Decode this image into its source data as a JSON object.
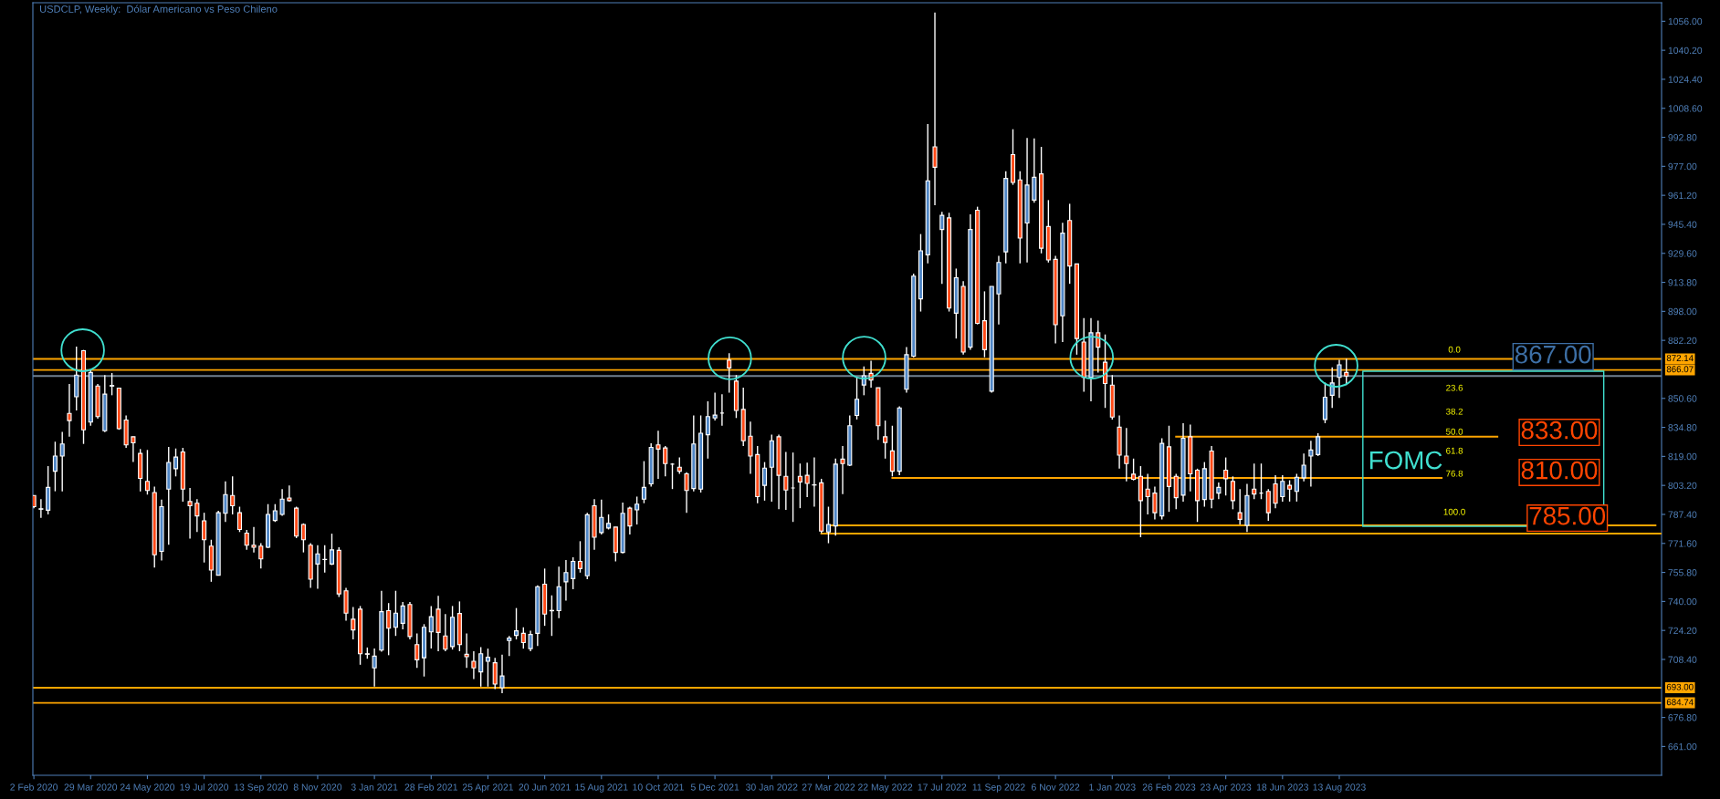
{
  "chart_data": {
    "type": "candlestick",
    "title": "USDCLP, Weekly:  Dólar Americano vs Peso Chileno",
    "x": [
      "2020-02-02",
      "2020-02-09",
      "2020-02-16",
      "2020-02-23",
      "2020-03-01",
      "2020-03-08",
      "2020-03-15",
      "2020-03-22",
      "2020-03-29",
      "2020-04-05",
      "2020-04-12",
      "2020-04-19",
      "2020-04-26",
      "2020-05-03",
      "2020-05-10",
      "2020-05-17",
      "2020-05-24",
      "2020-05-31",
      "2020-06-07",
      "2020-06-14",
      "2020-06-21",
      "2020-06-28",
      "2020-07-05",
      "2020-07-12",
      "2020-07-19",
      "2020-07-26",
      "2020-08-02",
      "2020-08-09",
      "2020-08-16",
      "2020-08-23",
      "2020-08-30",
      "2020-09-06",
      "2020-09-13",
      "2020-09-20",
      "2020-09-27",
      "2020-10-04",
      "2020-10-11",
      "2020-10-18",
      "2020-10-25",
      "2020-11-01",
      "2020-11-08",
      "2020-11-15",
      "2020-11-22",
      "2020-11-29",
      "2020-12-06",
      "2020-12-13",
      "2020-12-20",
      "2020-12-27",
      "2021-01-03",
      "2021-01-10",
      "2021-01-17",
      "2021-01-24",
      "2021-01-31",
      "2021-02-07",
      "2021-02-14",
      "2021-02-21",
      "2021-02-28",
      "2021-03-07",
      "2021-03-14",
      "2021-03-21",
      "2021-03-28",
      "2021-04-04",
      "2021-04-11",
      "2021-04-18",
      "2021-04-25",
      "2021-05-02",
      "2021-05-09",
      "2021-05-16",
      "2021-05-23",
      "2021-05-30",
      "2021-06-06",
      "2021-06-13",
      "2021-06-20",
      "2021-06-27",
      "2021-07-04",
      "2021-07-11",
      "2021-07-18",
      "2021-07-25",
      "2021-08-01",
      "2021-08-08",
      "2021-08-15",
      "2021-08-22",
      "2021-08-29",
      "2021-09-05",
      "2021-09-12",
      "2021-09-19",
      "2021-09-26",
      "2021-10-03",
      "2021-10-10",
      "2021-10-17",
      "2021-10-24",
      "2021-10-31",
      "2021-11-07",
      "2021-11-14",
      "2021-11-21",
      "2021-11-28",
      "2021-12-05",
      "2021-12-12",
      "2021-12-19",
      "2021-12-26",
      "2022-01-02",
      "2022-01-09",
      "2022-01-16",
      "2022-01-23",
      "2022-01-30",
      "2022-02-06",
      "2022-02-13",
      "2022-02-20",
      "2022-02-27",
      "2022-03-06",
      "2022-03-13",
      "2022-03-20",
      "2022-03-27",
      "2022-04-03",
      "2022-04-10",
      "2022-04-17",
      "2022-04-24",
      "2022-05-01",
      "2022-05-08",
      "2022-05-15",
      "2022-05-22",
      "2022-05-29",
      "2022-06-05",
      "2022-06-12",
      "2022-06-19",
      "2022-06-26",
      "2022-07-03",
      "2022-07-10",
      "2022-07-17",
      "2022-07-24",
      "2022-07-31",
      "2022-08-07",
      "2022-08-14",
      "2022-08-21",
      "2022-08-28",
      "2022-09-04",
      "2022-09-11",
      "2022-09-18",
      "2022-09-25",
      "2022-10-02",
      "2022-10-09",
      "2022-10-16",
      "2022-10-23",
      "2022-10-30",
      "2022-11-06",
      "2022-11-13",
      "2022-11-20",
      "2022-11-27",
      "2022-12-04",
      "2022-12-11",
      "2022-12-18",
      "2022-12-25",
      "2023-01-01",
      "2023-01-08",
      "2023-01-15",
      "2023-01-22",
      "2023-01-29",
      "2023-02-05",
      "2023-02-12",
      "2023-02-19",
      "2023-02-26",
      "2023-03-05",
      "2023-03-12",
      "2023-03-19",
      "2023-03-26",
      "2023-04-02",
      "2023-04-09",
      "2023-04-16",
      "2023-04-23",
      "2023-04-30",
      "2023-05-07",
      "2023-05-14",
      "2023-05-21",
      "2023-05-28",
      "2023-06-04",
      "2023-06-11",
      "2023-06-18",
      "2023-06-25",
      "2023-07-02",
      "2023-07-09",
      "2023-07-16",
      "2023-07-23",
      "2023-07-30",
      "2023-08-06",
      "2023-08-13",
      "2023-08-20"
    ],
    "ohlc": [
      [
        797.7,
        797.7,
        790.8,
        791.6
      ],
      [
        790.2,
        795.7,
        785.5,
        790.5
      ],
      [
        789.7,
        813.7,
        787.4,
        802.1
      ],
      [
        810.9,
        827.0,
        800.0,
        819.2
      ],
      [
        819.2,
        832.4,
        799.9,
        825.8
      ],
      [
        842.4,
        858.4,
        829.7,
        838.5
      ],
      [
        851.5,
        878.8,
        844.0,
        863.3
      ],
      [
        876.6,
        877.0,
        825.8,
        833.5
      ],
      [
        837.7,
        866.1,
        835.7,
        864.7
      ],
      [
        857.3,
        858.4,
        839.6,
        840.7
      ],
      [
        833.0,
        863.3,
        832.2,
        852.9
      ],
      [
        857.3,
        864.4,
        852.3,
        857.6
      ],
      [
        856.2,
        856.2,
        833.5,
        834.1
      ],
      [
        838.8,
        841.3,
        823.6,
        825.3
      ],
      [
        829.7,
        829.7,
        815.9,
        826.4
      ],
      [
        820.6,
        823.0,
        799.9,
        807.0
      ],
      [
        805.4,
        822.5,
        798.2,
        800.4
      ],
      [
        799.3,
        802.6,
        758.5,
        765.4
      ],
      [
        767.3,
        795.5,
        762.3,
        791.6
      ],
      [
        801.2,
        824.2,
        770.9,
        815.7
      ],
      [
        812.3,
        823.3,
        808.1,
        818.6
      ],
      [
        821.4,
        823.6,
        794.4,
        801.2
      ],
      [
        794.4,
        801.8,
        774.2,
        792.1
      ],
      [
        793.5,
        795.7,
        777.8,
        786.6
      ],
      [
        783.9,
        788.3,
        761.2,
        773.6
      ],
      [
        770.1,
        773.6,
        750.7,
        757.1
      ],
      [
        754.3,
        789.4,
        754.3,
        788.3
      ],
      [
        788.0,
        805.4,
        783.3,
        798.2
      ],
      [
        797.7,
        808.1,
        787.4,
        792.1
      ],
      [
        788.3,
        791.6,
        777.8,
        779.2
      ],
      [
        777.2,
        778.9,
        768.1,
        770.6
      ],
      [
        770.6,
        780.5,
        766.7,
        769.5
      ],
      [
        770.1,
        771.7,
        757.9,
        763.2
      ],
      [
        769.5,
        793.0,
        769.0,
        787.4
      ],
      [
        784.1,
        793.0,
        783.3,
        789.4
      ],
      [
        787.4,
        801.2,
        786.6,
        795.7
      ],
      [
        796.3,
        803.2,
        794.4,
        794.9
      ],
      [
        790.8,
        791.6,
        774.5,
        775.6
      ],
      [
        781.9,
        782.5,
        766.7,
        773.6
      ],
      [
        770.6,
        771.7,
        747.4,
        752.1
      ],
      [
        760.4,
        770.6,
        746.9,
        765.9
      ],
      [
        762.8,
        770.6,
        755.7,
        762.9
      ],
      [
        760.4,
        776.9,
        759.8,
        768.1
      ],
      [
        767.8,
        769.5,
        742.4,
        744.1
      ],
      [
        745.8,
        747.4,
        729.5,
        733.6
      ],
      [
        730.3,
        736.9,
        719.3,
        724.5
      ],
      [
        735.8,
        737.5,
        705.5,
        711.5
      ],
      [
        711.5,
        714.9,
        708.8,
        711.2
      ],
      [
        703.8,
        714.3,
        693.6,
        710.2
      ],
      [
        713.5,
        745.8,
        712.6,
        734.4
      ],
      [
        735.0,
        739.1,
        710.7,
        725.4
      ],
      [
        725.9,
        745.8,
        721.2,
        733.6
      ],
      [
        728.1,
        739.7,
        724.8,
        737.5
      ],
      [
        738.3,
        739.7,
        719.3,
        720.9
      ],
      [
        716.5,
        722.6,
        703.8,
        708.2
      ],
      [
        709.3,
        727.6,
        699.1,
        725.9
      ],
      [
        723.4,
        737.5,
        714.3,
        731.7
      ],
      [
        735.8,
        743.0,
        712.9,
        723.1
      ],
      [
        721.2,
        733.1,
        712.9,
        714.0
      ],
      [
        715.4,
        737.5,
        713.8,
        731.4
      ],
      [
        733.4,
        740.0,
        712.9,
        716.5
      ],
      [
        711.2,
        722.6,
        703.8,
        709.9
      ],
      [
        707.4,
        712.9,
        697.7,
        703.8
      ],
      [
        701.6,
        715.1,
        693.6,
        711.5
      ],
      [
        707.4,
        714.3,
        693.6,
        709.6
      ],
      [
        706.6,
        709.3,
        692.2,
        695.0
      ],
      [
        693.0,
        711.0,
        690.0,
        699.4
      ],
      [
        718.7,
        721.2,
        710.2,
        720.1
      ],
      [
        721.5,
        736.4,
        719.3,
        724.0
      ],
      [
        722.6,
        725.9,
        714.3,
        717.6
      ],
      [
        714.3,
        724.0,
        712.9,
        722.0
      ],
      [
        722.6,
        748.8,
        715.7,
        748.0
      ],
      [
        749.4,
        757.9,
        726.7,
        733.1
      ],
      [
        734.9,
        743.3,
        721.2,
        735.1
      ],
      [
        735.0,
        759.0,
        730.9,
        748.0
      ],
      [
        750.7,
        762.6,
        740.5,
        755.7
      ],
      [
        752.4,
        764.0,
        746.6,
        761.8
      ],
      [
        761.8,
        772.8,
        755.7,
        757.9
      ],
      [
        754.0,
        788.3,
        752.1,
        787.2
      ],
      [
        792.1,
        795.7,
        768.1,
        775.0
      ],
      [
        777.5,
        795.5,
        776.4,
        785.8
      ],
      [
        780.0,
        787.4,
        779.2,
        782.5
      ],
      [
        780.5,
        780.5,
        761.8,
        766.7
      ],
      [
        766.7,
        793.8,
        766.2,
        788.0
      ],
      [
        790.8,
        791.6,
        776.4,
        781.1
      ],
      [
        789.9,
        797.1,
        781.9,
        793.0
      ],
      [
        795.7,
        816.4,
        793.5,
        802.1
      ],
      [
        804.0,
        826.1,
        802.6,
        823.9
      ],
      [
        825.3,
        833.0,
        806.8,
        823.0
      ],
      [
        823.6,
        824.7,
        808.1,
        815.1
      ],
      [
        814.8,
        815.3,
        801.2,
        814.8
      ],
      [
        813.1,
        818.4,
        809.5,
        810.9
      ],
      [
        809.5,
        810.4,
        788.3,
        800.4
      ],
      [
        801.5,
        841.3,
        799.9,
        825.8
      ],
      [
        801.2,
        841.3,
        799.3,
        831.6
      ],
      [
        830.8,
        849.0,
        817.8,
        840.7
      ],
      [
        839.9,
        853.7,
        838.5,
        841.5
      ],
      [
        842.6,
        852.9,
        835.7,
        842.6
      ],
      [
        871.4,
        875.2,
        853.7,
        867.2
      ],
      [
        860.0,
        863.3,
        839.9,
        844.0
      ],
      [
        844.6,
        856.5,
        824.7,
        827.5
      ],
      [
        830.0,
        838.0,
        809.5,
        819.2
      ],
      [
        820.0,
        824.7,
        793.5,
        797.1
      ],
      [
        803.2,
        815.9,
        794.9,
        812.6
      ],
      [
        813.1,
        830.8,
        794.4,
        827.5
      ],
      [
        829.7,
        830.8,
        790.2,
        808.7
      ],
      [
        808.1,
        821.4,
        789.9,
        800.7
      ],
      [
        801.8,
        821.1,
        783.3,
        801.8
      ],
      [
        808.1,
        815.1,
        790.8,
        805.1
      ],
      [
        808.7,
        815.6,
        796.8,
        804.3
      ],
      [
        803.5,
        818.4,
        791.6,
        803.4
      ],
      [
        804.6,
        806.8,
        777.2,
        778.3
      ],
      [
        777.8,
        791.6,
        771.7,
        781.9
      ],
      [
        781.1,
        817.8,
        775.8,
        814.8
      ],
      [
        817.5,
        824.7,
        798.5,
        815.1
      ],
      [
        814.2,
        841.3,
        813.7,
        835.7
      ],
      [
        841.3,
        862.0,
        839.1,
        850.1
      ],
      [
        857.9,
        868.0,
        852.3,
        862.9
      ],
      [
        864.2,
        871.1,
        856.4,
        860.6
      ],
      [
        856.4,
        856.4,
        828.0,
        835.7
      ],
      [
        829.7,
        838.5,
        817.8,
        826.6
      ],
      [
        822.0,
        835.7,
        808.1,
        810.9
      ],
      [
        810.9,
        846.2,
        808.7,
        845.4
      ],
      [
        855.6,
        878.5,
        853.7,
        874.4
      ],
      [
        873.6,
        918.6,
        873.0,
        917.2
      ],
      [
        904.8,
        940.1,
        897.9,
        931.0
      ],
      [
        928.8,
        1000.0,
        924.1,
        969.1
      ],
      [
        987.6,
        1060.7,
        955.8,
        976.5
      ],
      [
        942.6,
        952.2,
        913.0,
        950.3
      ],
      [
        948.9,
        951.7,
        897.9,
        899.8
      ],
      [
        897.0,
        921.3,
        883.2,
        916.3
      ],
      [
        911.6,
        914.4,
        874.4,
        875.8
      ],
      [
        878.5,
        950.8,
        877.1,
        942.6
      ],
      [
        953.1,
        955.0,
        890.9,
        891.5
      ],
      [
        892.9,
        908.9,
        873.0,
        877.1
      ],
      [
        854.5,
        911.6,
        853.7,
        911.6
      ],
      [
        907.5,
        928.2,
        890.9,
        924.6
      ],
      [
        930.4,
        974.3,
        924.1,
        970.4
      ],
      [
        983.4,
        997.2,
        966.9,
        968.2
      ],
      [
        969.6,
        974.3,
        924.1,
        937.9
      ],
      [
        946.1,
        992.5,
        924.6,
        966.8
      ],
      [
        958.6,
        992.2,
        957.2,
        971.0
      ],
      [
        972.9,
        987.6,
        929.6,
        932.4
      ],
      [
        944.2,
        958.6,
        924.6,
        926.0
      ],
      [
        926.3,
        928.2,
        880.5,
        890.7
      ],
      [
        895.6,
        946.2,
        881.3,
        940.6
      ],
      [
        947.5,
        956.6,
        913.0,
        922.7
      ],
      [
        923.8,
        923.8,
        874.4,
        883.2
      ],
      [
        881.3,
        894.3,
        854.2,
        862.0
      ],
      [
        862.0,
        894.3,
        849.0,
        886.3
      ],
      [
        886.3,
        892.9,
        864.7,
        878.5
      ],
      [
        870.3,
        885.4,
        845.4,
        858.7
      ],
      [
        857.8,
        863.3,
        839.1,
        840.4
      ],
      [
        834.9,
        841.3,
        812.3,
        819.7
      ],
      [
        819.2,
        834.4,
        805.4,
        815.1
      ],
      [
        809.3,
        817.8,
        805.9,
        806.5
      ],
      [
        808.1,
        813.7,
        775.0,
        794.9
      ],
      [
        801.2,
        809.5,
        787.4,
        797.1
      ],
      [
        799.0,
        802.6,
        784.7,
        788.3
      ],
      [
        786.6,
        828.9,
        784.7,
        826.1
      ],
      [
        824.2,
        835.7,
        788.8,
        802.6
      ],
      [
        808.1,
        809.5,
        790.2,
        796.5
      ],
      [
        797.9,
        837.1,
        794.4,
        828.9
      ],
      [
        829.7,
        836.3,
        799.9,
        809.5
      ],
      [
        811.5,
        812.3,
        783.3,
        794.9
      ],
      [
        795.5,
        815.9,
        791.6,
        812.3
      ],
      [
        821.9,
        824.7,
        790.8,
        795.7
      ],
      [
        799.0,
        804.8,
        795.7,
        802.1
      ],
      [
        811.5,
        818.4,
        797.7,
        806.8
      ],
      [
        805.4,
        808.1,
        790.2,
        794.9
      ],
      [
        788.3,
        801.2,
        781.9,
        784.7
      ],
      [
        781.4,
        804.0,
        777.8,
        797.7
      ],
      [
        801.2,
        815.1,
        795.7,
        798.5
      ],
      [
        799.0,
        815.1,
        795.7,
        799.0
      ],
      [
        799.9,
        801.2,
        783.9,
        788.3
      ],
      [
        804.0,
        808.7,
        790.8,
        793.5
      ],
      [
        797.1,
        808.7,
        794.4,
        805.4
      ],
      [
        803.2,
        806.0,
        794.4,
        801.2
      ],
      [
        799.9,
        809.5,
        794.4,
        807.6
      ],
      [
        807.3,
        820.6,
        805.4,
        814.2
      ],
      [
        819.2,
        827.5,
        802.6,
        822.5
      ],
      [
        820.0,
        831.6,
        819.2,
        829.7
      ],
      [
        839.1,
        859.2,
        837.1,
        851.2
      ],
      [
        852.3,
        867.5,
        845.4,
        859.0
      ],
      [
        862.0,
        871.6,
        850.9,
        868.9
      ],
      [
        864.7,
        872.2,
        857.8,
        862.8
      ]
    ],
    "xlim": [
      "2020-02-01",
      "2024-06-26"
    ],
    "xticks": [
      {
        "value": "2020-02-02",
        "label": "2 Feb 2020"
      },
      {
        "value": "2020-03-29",
        "label": "29 Mar 2020"
      },
      {
        "value": "2020-05-24",
        "label": "24 May 2020"
      },
      {
        "value": "2020-07-19",
        "label": "19 Jul 2020"
      },
      {
        "value": "2020-09-13",
        "label": "13 Sep 2020"
      },
      {
        "value": "2020-11-08",
        "label": "8 Nov 2020"
      },
      {
        "value": "2021-01-03",
        "label": "3 Jan 2021"
      },
      {
        "value": "2021-02-28",
        "label": "28 Feb 2021"
      },
      {
        "value": "2021-04-25",
        "label": "25 Apr 2021"
      },
      {
        "value": "2021-06-20",
        "label": "20 Jun 2021"
      },
      {
        "value": "2021-08-15",
        "label": "15 Aug 2021"
      },
      {
        "value": "2021-10-10",
        "label": "10 Oct 2021"
      },
      {
        "value": "2021-12-05",
        "label": "5 Dec 2021"
      },
      {
        "value": "2022-01-30",
        "label": "30 Jan 2022"
      },
      {
        "value": "2022-03-27",
        "label": "27 Mar 2022"
      },
      {
        "value": "2022-05-22",
        "label": "22 May 2022"
      },
      {
        "value": "2022-07-17",
        "label": "17 Jul 2022"
      },
      {
        "value": "2022-09-11",
        "label": "11 Sep 2022"
      },
      {
        "value": "2022-11-06",
        "label": "6 Nov 2022"
      },
      {
        "value": "2023-01-01",
        "label": "1 Jan 2023"
      },
      {
        "value": "2023-02-26",
        "label": "26 Feb 2023"
      },
      {
        "value": "2023-04-23",
        "label": "23 Apr 2023"
      },
      {
        "value": "2023-06-18",
        "label": "18 Jun 2023"
      },
      {
        "value": "2023-08-13",
        "label": "13 Aug 2023"
      }
    ],
    "ylim": [
      645.3,
      1066.1
    ],
    "yticks": [
      {
        "value": 1056,
        "label": "1056.00"
      },
      {
        "value": 1040.2,
        "label": "1040.20"
      },
      {
        "value": 1024.4,
        "label": "1024.40"
      },
      {
        "value": 1008.6,
        "label": "1008.60"
      },
      {
        "value": 992.8,
        "label": "992.80"
      },
      {
        "value": 977,
        "label": "977.00"
      },
      {
        "value": 961.2,
        "label": "961.20"
      },
      {
        "value": 945.4,
        "label": "945.40"
      },
      {
        "value": 929.6,
        "label": "929.60"
      },
      {
        "value": 913.8,
        "label": "913.80"
      },
      {
        "value": 898,
        "label": "898.00"
      },
      {
        "value": 882.2,
        "label": "882.20"
      },
      {
        "value": 850.6,
        "label": "850.60"
      },
      {
        "value": 834.8,
        "label": "834.80"
      },
      {
        "value": 819,
        "label": "819.00"
      },
      {
        "value": 803.2,
        "label": "803.20"
      },
      {
        "value": 787.4,
        "label": "787.40"
      },
      {
        "value": 771.6,
        "label": "771.60"
      },
      {
        "value": 755.8,
        "label": "755.80"
      },
      {
        "value": 740,
        "label": "740.00"
      },
      {
        "value": 724.2,
        "label": "724.20"
      },
      {
        "value": 708.4,
        "label": "708.40"
      },
      {
        "value": 676.8,
        "label": "676.80"
      },
      {
        "value": 661,
        "label": "661.00"
      }
    ],
    "ref_lines": [
      {
        "axis": "y",
        "value": 872.14,
        "label": "872.14",
        "color": "#ffa500"
      },
      {
        "axis": "y",
        "value": 866.07,
        "label": "866.07",
        "color": "#ffa500"
      },
      {
        "axis": "y",
        "value": 862.8,
        "label": null,
        "color": "#708090"
      },
      {
        "axis": "y",
        "value": 693.0,
        "label": "693.00",
        "color": "#ffa500"
      },
      {
        "axis": "y",
        "value": 684.74,
        "label": "684.74",
        "color": "#ffa500"
      }
    ],
    "series": [
      {
        "type": "line",
        "color": "#ffa500",
        "x": [
          "2023-03-05",
          "2024-01-16"
        ],
        "values": [
          829.7,
          829.7
        ]
      },
      {
        "type": "line",
        "color": "#ffa500",
        "x": [
          "2022-05-29",
          "2023-11-22"
        ],
        "values": [
          807.3,
          807.3
        ]
      },
      {
        "type": "line",
        "color": "#ffa500",
        "x": [
          "2022-03-27",
          "2024-06-20"
        ],
        "values": [
          781.4,
          781.4
        ]
      },
      {
        "type": "line",
        "color": "#ffa500",
        "x": [
          "2022-03-20",
          "2024-06-25"
        ],
        "values": [
          777.0,
          777.0
        ]
      }
    ],
    "annotations": [
      "0.0",
      "23.6",
      "38.2",
      "50.0",
      "61.8",
      "76.8",
      "100.0",
      "867.00",
      "833.00",
      "810.00",
      "785.00",
      "FOMC"
    ]
  }
}
